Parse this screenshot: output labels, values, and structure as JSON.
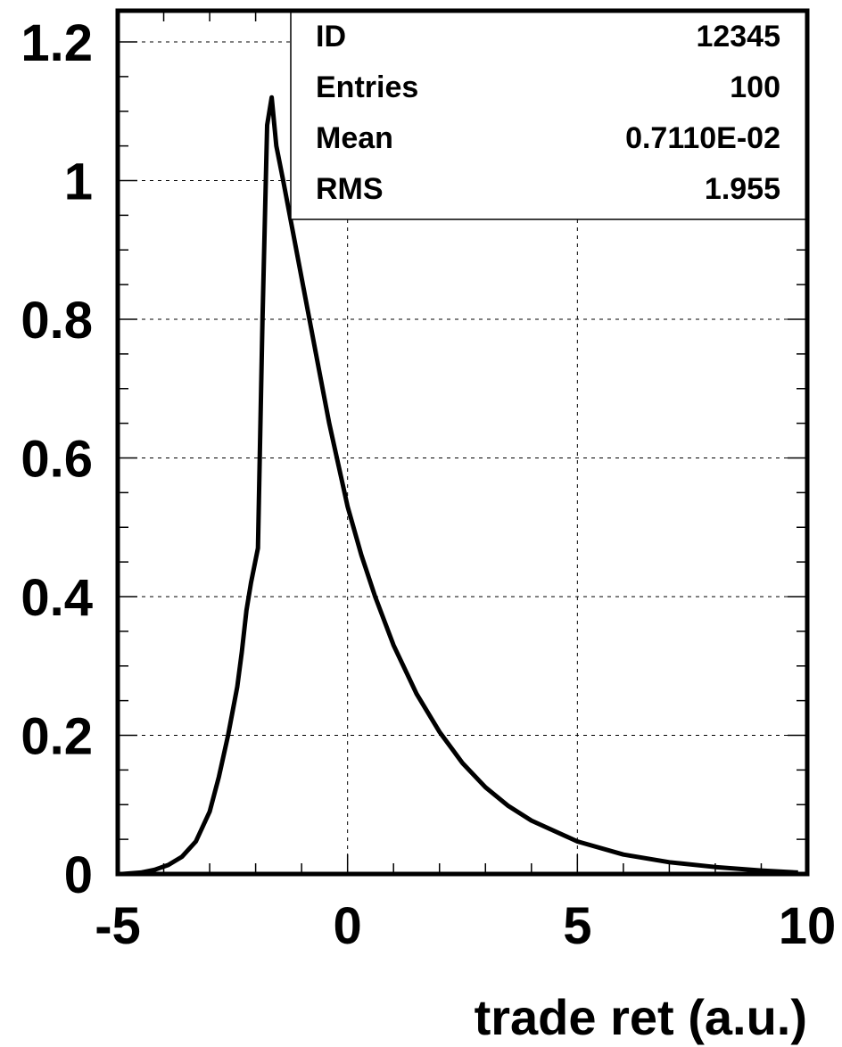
{
  "chart_data": {
    "type": "line",
    "title": "",
    "xlabel": "trade ret (a.u.)",
    "ylabel": "",
    "xlim": [
      -5,
      10
    ],
    "ylim": [
      0,
      1.2
    ],
    "grid": true,
    "x_ticks": [
      -5,
      0,
      5,
      10
    ],
    "x_tick_labels": [
      "-5",
      "0",
      "5",
      "10"
    ],
    "y_ticks": [
      0,
      0.2,
      0.4,
      0.6,
      0.8,
      1,
      1.2
    ],
    "y_tick_labels": [
      "0",
      "0.2",
      "0.4",
      "0.6",
      "0.8",
      "1",
      "1.2"
    ],
    "series": [
      {
        "x": [
          -4.9,
          -4.5,
          -4.2,
          -3.9,
          -3.6,
          -3.3,
          -3.0,
          -2.8,
          -2.6,
          -2.4,
          -2.3,
          -2.2,
          -2.1,
          -1.95,
          -1.85,
          -1.75,
          -1.65,
          -1.55,
          -1.4,
          -1.2,
          -1.0,
          -0.8,
          -0.6,
          -0.4,
          -0.2,
          0.0,
          0.3,
          0.6,
          1.0,
          1.5,
          2.0,
          2.5,
          3.0,
          3.5,
          4.0,
          5.0,
          6.0,
          7.0,
          8.0,
          9.0,
          9.8
        ],
        "y": [
          0.0,
          0.002,
          0.006,
          0.013,
          0.025,
          0.047,
          0.09,
          0.14,
          0.2,
          0.27,
          0.32,
          0.38,
          0.42,
          0.47,
          0.8,
          1.08,
          1.12,
          1.05,
          1.0,
          0.93,
          0.86,
          0.79,
          0.72,
          0.65,
          0.59,
          0.53,
          0.46,
          0.4,
          0.33,
          0.26,
          0.205,
          0.16,
          0.125,
          0.098,
          0.077,
          0.047,
          0.028,
          0.017,
          0.01,
          0.005,
          0.002
        ]
      }
    ],
    "stats_box": {
      "rows": [
        {
          "label": "ID",
          "value": "12345"
        },
        {
          "label": "Entries",
          "value": "100"
        },
        {
          "label": "Mean",
          "value": "0.7110E-02"
        },
        {
          "label": "RMS",
          "value": "1.955"
        }
      ]
    }
  }
}
